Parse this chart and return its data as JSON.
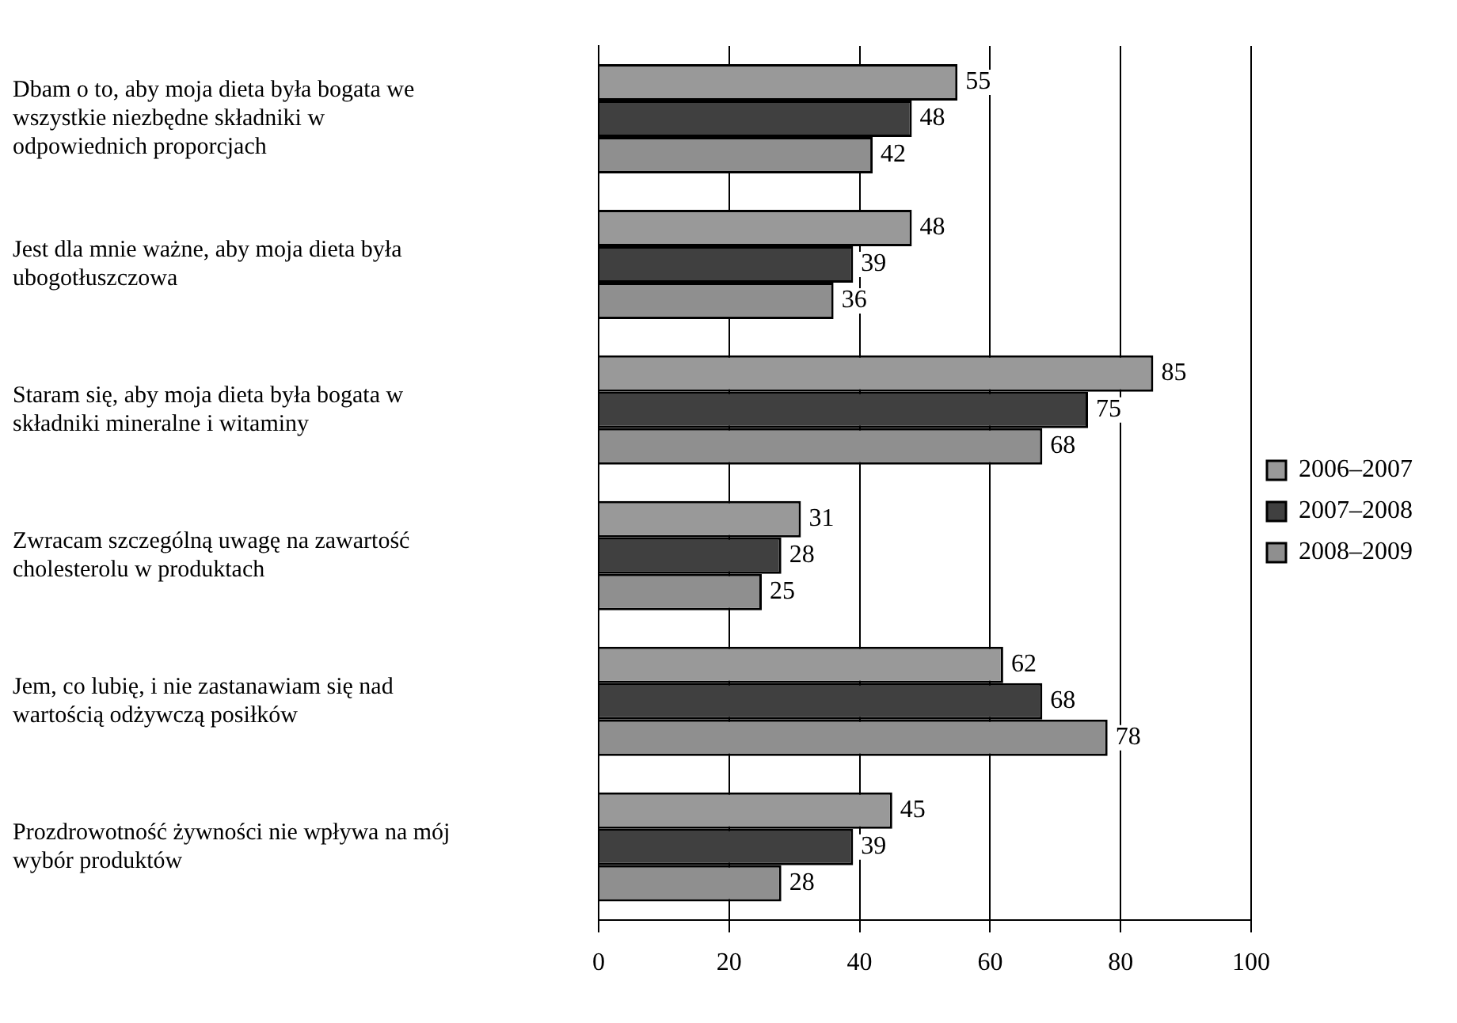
{
  "chart_data": {
    "type": "bar",
    "orientation": "horizontal",
    "categories": [
      "Dbam o to, aby moja dieta była bogata we wszystkie niezbędne składniki w odpowiednich proporcjach",
      "Jest dla mnie ważne, aby moja dieta była ubogotłuszczowa",
      "Staram się, aby moja dieta była bogata w składniki mineralne i witaminy",
      "Zwracam szczególną uwagę na zawartość cholesterolu w produktach",
      "Jem, co lubię, i nie zastanawiam się nad wartością odżywczą posiłków",
      "Prozdrowotność żywności nie wpływa na mój wybór produktów"
    ],
    "series": [
      {
        "name": "2006–2007",
        "color": "#999999",
        "values": [
          55,
          48,
          85,
          31,
          62,
          45
        ]
      },
      {
        "name": "2007–2008",
        "color": "#404040",
        "values": [
          48,
          39,
          75,
          28,
          68,
          39
        ]
      },
      {
        "name": "2008–2009",
        "color": "#8f8f8f",
        "values": [
          42,
          36,
          68,
          25,
          78,
          28
        ]
      }
    ],
    "xlim": [
      0,
      100
    ],
    "xticks": [
      0,
      20,
      40,
      60,
      80,
      100
    ],
    "grid": "x",
    "legend": "right",
    "data_labels": true
  }
}
